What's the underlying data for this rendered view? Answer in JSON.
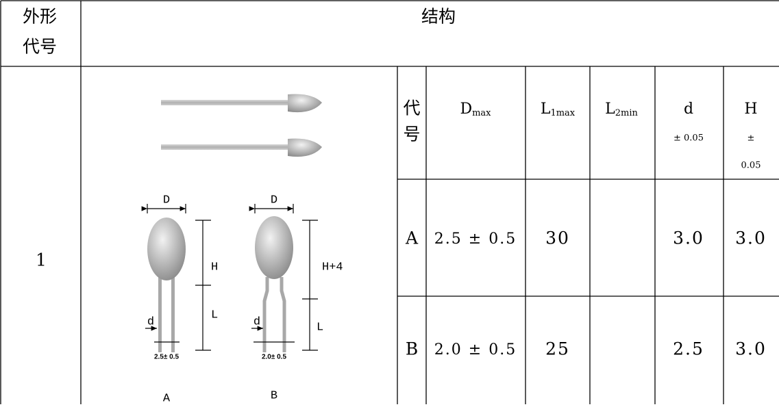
{
  "table": {
    "corner_header": [
      "外形",
      "代号"
    ],
    "structure_header": "结构",
    "row_label": "1",
    "inner_headers": {
      "code": "代号",
      "dmax": {
        "main": "D",
        "sub": "max"
      },
      "l1max": {
        "main": "L",
        "sub": "1max"
      },
      "l2min": {
        "main": "L",
        "sub": "2min"
      },
      "d": {
        "main": "d",
        "tol": "± 0.05"
      },
      "h": {
        "main": "H",
        "tol": [
          "±",
          "0.05"
        ]
      }
    },
    "rows": [
      [
        "A",
        "2.5 ± 0.5",
        "30",
        "",
        "3.0",
        "3.0"
      ],
      [
        "B",
        "2.0 ± 0.5",
        "25",
        "",
        "2.5",
        "3.0"
      ]
    ]
  },
  "figure": {
    "a": {
      "d_label": "D",
      "h_label": "H",
      "lead_label": "d",
      "l_label": "L",
      "spacing": "2.5± 0.5",
      "name": "A"
    },
    "b": {
      "d_label": "D",
      "h_label": "H+4",
      "lead_label": "d",
      "l_label": "L",
      "spacing": "2.0± 0.5",
      "name": "B"
    }
  }
}
